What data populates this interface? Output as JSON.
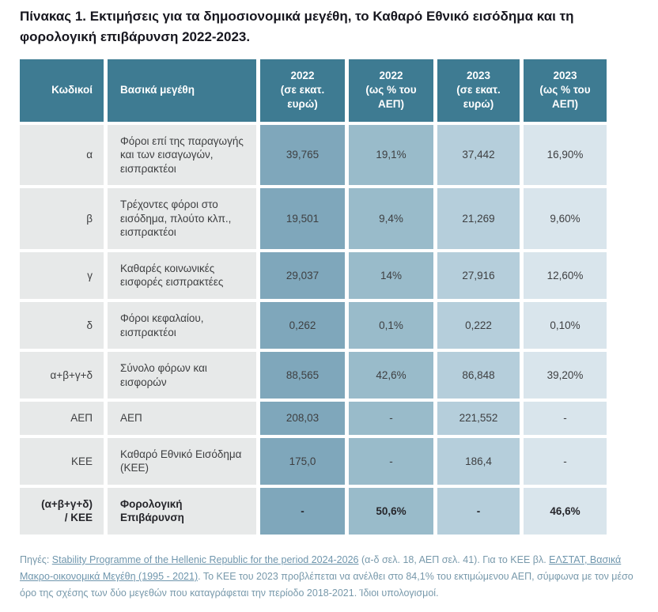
{
  "page": {
    "title": "Πίνακας 1. Εκτιμήσεις για τα δημοσιονομικά μεγέθη, το Καθαρό Εθνικό εισόδημα και τη φορολογική επιβάρυνση 2022-2023."
  },
  "colors": {
    "header_bg": "#3e7b92",
    "label_column_bg": "#e7e9e9",
    "value_column_bgs": [
      "#7fa7bb",
      "#99bbca",
      "#b5cedb",
      "#d9e5ec"
    ],
    "title_color": "#17171f",
    "footnote_color": "#7899ab",
    "link_color": "#6f96ad"
  },
  "table": {
    "headers": [
      "Κωδικοί",
      "Βασικά μεγέθη",
      "2022\n(σε εκατ.\nευρώ)",
      "2022\n(ως % του\nΑΕΠ)",
      "2023\n(σε εκατ.\nευρώ)",
      "2023\n(ως % του\nΑΕΠ)"
    ],
    "rows": [
      {
        "code": "α",
        "label": "Φόροι επί της παραγωγής και των εισαγωγών, εισπρακτέοι",
        "values": [
          "39,765",
          "19,1%",
          "37,442",
          "16,90%"
        ],
        "bold": false
      },
      {
        "code": "β",
        "label": "Τρέχοντες φόροι στο εισόδημα, πλούτο κλπ., εισπρακτέοι",
        "values": [
          "19,501",
          "9,4%",
          "21,269",
          "9,60%"
        ],
        "bold": false
      },
      {
        "code": "γ",
        "label": "Καθαρές κοινωνικές εισφορές εισπρακτέες",
        "values": [
          "29,037",
          "14%",
          "27,916",
          "12,60%"
        ],
        "bold": false
      },
      {
        "code": "δ",
        "label": "Φόροι κεφαλαίου, εισπρακτέοι",
        "values": [
          "0,262",
          "0,1%",
          "0,222",
          "0,10%"
        ],
        "bold": false
      },
      {
        "code": "α+β+γ+δ",
        "label": "Σύνολο φόρων και εισφορών",
        "values": [
          "88,565",
          "42,6%",
          "86,848",
          "39,20%"
        ],
        "bold": false
      },
      {
        "code": "ΑΕΠ",
        "label": "ΑΕΠ",
        "values": [
          "208,03",
          "-",
          "221,552",
          "-"
        ],
        "bold": false
      },
      {
        "code": "ΚΕΕ",
        "label": "Καθαρό Εθνικό Εισόδημα (ΚΕΕ)",
        "values": [
          "175,0",
          "-",
          "186,4",
          "-"
        ],
        "bold": false
      },
      {
        "code": "(α+β+γ+δ)\n/ ΚΕΕ",
        "label": "Φορολογική Επιβάρυνση",
        "values": [
          "-",
          "50,6%",
          "-",
          "46,6%"
        ],
        "bold": true
      }
    ]
  },
  "footnote": {
    "segments": [
      {
        "text": "Πηγές: ",
        "link": false
      },
      {
        "text": "Stability Programme of the Hellenic Republic for the period 2024-2026",
        "link": true
      },
      {
        "text": " (α-δ σελ. 18, ΑΕΠ σελ. 41). Για το ΚΕΕ βλ. ",
        "link": false
      },
      {
        "text": "ΕΛΣΤΑΤ, Βασικά Μακρο-οικονομικά Μεγέθη (1995 - 2021)",
        "link": true
      },
      {
        "text": ". Το ΚΕΕ του 2023 προβλέπεται να ανέλθει στο 84,1% του εκτιμώμενου ΑΕΠ, σύμφωνα με τον μέσο όρο της σχέσης των δύο μεγεθών που καταγράφεται την περίοδο 2018-2021. Ίδιοι υπολογισμοί.",
        "link": false
      }
    ]
  }
}
